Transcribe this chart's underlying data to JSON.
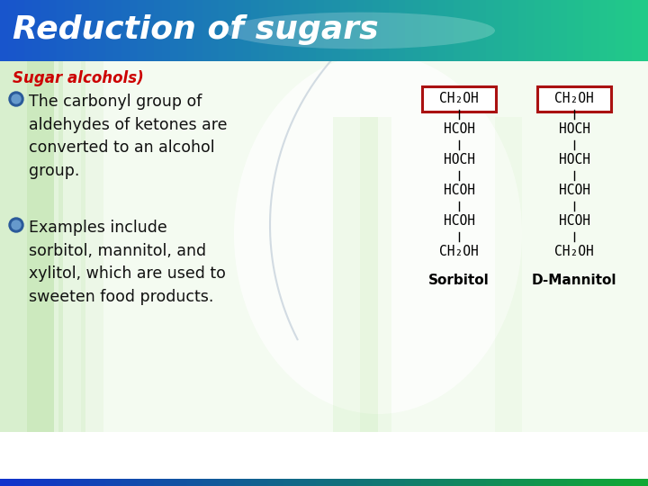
{
  "title": "Reduction of sugars",
  "subtitle": "Sugar alcohols)",
  "title_color": "#ffffff",
  "subtitle_color": "#cc0000",
  "body_bg": "#f5fdf0",
  "bullet_color_outer": "#2a5a9a",
  "bullet_color_inner": "#6699cc",
  "bullet_points": [
    "The carbonyl group of\naldehydes of ketones are\nconverted to an alcohol\ngroup.",
    "Examples include\nsorbitol, mannitol, and\nxylitol, which are used to\nsweeten food products."
  ],
  "sorbitol_lines": [
    "CH₂OH",
    "HCOH",
    "HOCH",
    "HCOH",
    "HCOH",
    "CH₂OH"
  ],
  "mannitol_lines": [
    "CH₂OH",
    "HOCH",
    "HOCH",
    "HCOH",
    "HCOH",
    "CH₂OH"
  ],
  "sorbitol_label": "Sorbitol",
  "mannitol_label": "D-Mannitol",
  "box_color": "#aa1111",
  "header_bottom_bar_left": "#1a44cc",
  "header_bottom_bar_right": "#22bb44",
  "struct_text_color": "#000000",
  "label_text_color": "#000000"
}
